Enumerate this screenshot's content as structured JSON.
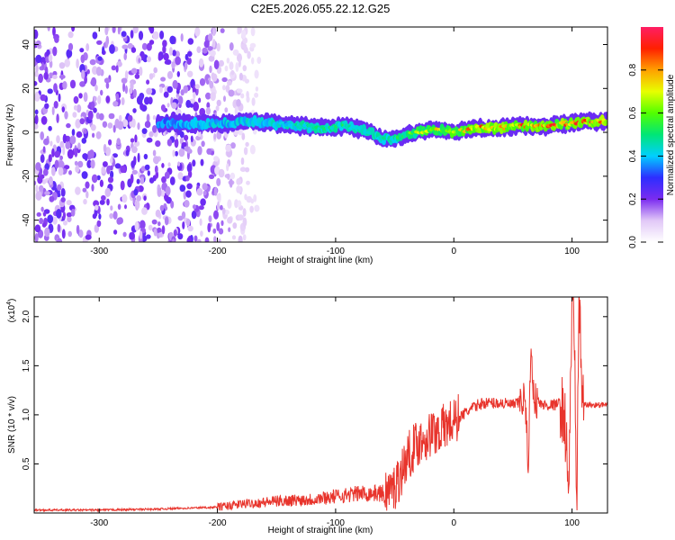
{
  "title": "C2E5.2026.055.22.12.G25",
  "colors": {
    "spectrum_low": "#7b2cf0",
    "snr_line": "#e8342c",
    "frame": "#000000"
  },
  "chart_data": [
    {
      "type": "heatmap",
      "xlabel": "Height of straight line (km)",
      "ylabel": "Frequency (Hz)",
      "xlim": [
        -355,
        130
      ],
      "ylim": [
        -50,
        48
      ],
      "xticks": [
        -300,
        -200,
        -100,
        0,
        100
      ],
      "xtick_labels": [
        "-300",
        "-200",
        "-100",
        "0",
        "100"
      ],
      "yticks": [
        -40,
        -20,
        0,
        20,
        40
      ],
      "ytick_labels": [
        "-40",
        "-20",
        "0",
        "20",
        "40"
      ],
      "grid": false,
      "colorbar": {
        "label": "Normalized spectral amplitude",
        "range": [
          0,
          1
        ],
        "ticks": [
          0,
          0.2,
          0.4,
          0.6,
          0.8
        ],
        "tick_labels": [
          "0.0",
          "0.2",
          "0.4",
          "0.6",
          "0.8"
        ]
      },
      "noise_region": {
        "x_from": -355,
        "x_to": -180,
        "amplitude": 0.2
      },
      "ridge": {
        "x": [
          -250,
          -230,
          -210,
          -190,
          -170,
          -150,
          -130,
          -110,
          -90,
          -75,
          -60,
          -50,
          -40,
          -30,
          -20,
          -10,
          0,
          10,
          20,
          30,
          40,
          50,
          60,
          70,
          80,
          90,
          100,
          110,
          120,
          130
        ],
        "frequency": [
          4,
          4,
          4,
          4,
          5,
          4,
          3,
          2,
          3,
          1,
          -3,
          -3,
          -1,
          0,
          1,
          1,
          0,
          1,
          2,
          2,
          2,
          3,
          3,
          3,
          3,
          4,
          4,
          5,
          5,
          5
        ],
        "amplitude": [
          0.3,
          0.35,
          0.4,
          0.4,
          0.45,
          0.45,
          0.5,
          0.55,
          0.55,
          0.6,
          0.5,
          0.55,
          0.6,
          0.7,
          0.75,
          0.8,
          0.85,
          0.85,
          0.9,
          0.95,
          0.95,
          0.9,
          0.95,
          0.95,
          0.95,
          0.95,
          0.9,
          1.0,
          1.0,
          1.0
        ]
      }
    },
    {
      "type": "line",
      "xlabel": "Height of straight line (km)",
      "ylabel": "SNR (10 * v/v)",
      "y_multiplier": "(x10",
      "y_multiplier_exp": "4",
      "y_multiplier_close": ")",
      "xlim": [
        -355,
        130
      ],
      "ylim": [
        0,
        2.2
      ],
      "xticks": [
        -300,
        -200,
        -100,
        0,
        100
      ],
      "xtick_labels": [
        "-300",
        "-200",
        "-100",
        "0",
        "100"
      ],
      "yticks": [
        0.5,
        1.0,
        1.5,
        2.0
      ],
      "ytick_labels": [
        "0.5",
        "1.0",
        "1.5",
        "2.0"
      ],
      "grid": false,
      "series": [
        {
          "x": [
            -355,
            -300,
            -250,
            -200,
            -180,
            -150,
            -120,
            -100,
            -80,
            -60,
            -50,
            -45,
            -40,
            -35,
            -30,
            -25,
            -20,
            -15,
            -10,
            -5,
            0,
            5,
            10,
            15,
            20,
            25,
            30,
            40,
            50,
            55,
            60,
            63,
            65,
            68,
            70,
            75,
            80,
            85,
            90,
            93,
            95,
            97,
            99,
            100,
            102,
            104,
            106,
            108,
            110,
            120,
            130
          ],
          "y": [
            0.03,
            0.03,
            0.04,
            0.06,
            0.09,
            0.12,
            0.14,
            0.17,
            0.2,
            0.2,
            0.26,
            0.4,
            0.55,
            0.65,
            0.72,
            0.76,
            0.8,
            0.83,
            0.86,
            0.9,
            0.93,
            0.98,
            1.02,
            1.06,
            1.1,
            1.12,
            1.12,
            1.12,
            1.1,
            1.12,
            1.18,
            0.5,
            1.6,
            1.2,
            1.13,
            1.1,
            1.1,
            1.1,
            1.12,
            1.0,
            0.8,
            0.1,
            1.5,
            2.2,
            1.8,
            0.1,
            2.1,
            1.4,
            1.1,
            1.1,
            1.1
          ]
        }
      ]
    }
  ]
}
